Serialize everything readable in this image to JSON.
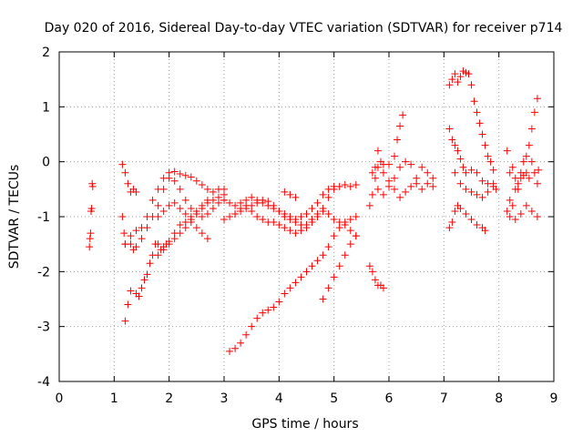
{
  "chart_data": {
    "type": "scatter",
    "title": "Day 020 of 2016, Sidereal Day-to-day VTEC variation (SDTVAR) for receiver p714",
    "xlabel": "GPS time / hours",
    "ylabel": "SDTVAR / TECUs",
    "xlim": [
      0,
      9
    ],
    "ylim": [
      -4,
      2
    ],
    "xticks": [
      "0",
      "1",
      "2",
      "3",
      "4",
      "5",
      "6",
      "7",
      "8",
      "9"
    ],
    "yticks": [
      "-4",
      "-3",
      "-2",
      "-1",
      "0",
      "1",
      "2"
    ],
    "grid": true,
    "marker": "+",
    "marker_color": "#ff0000",
    "series": [
      {
        "points": [
          [
            0.55,
            -1.55
          ],
          [
            0.56,
            -1.4
          ],
          [
            0.57,
            -1.3
          ],
          [
            0.58,
            -0.9
          ],
          [
            0.59,
            -0.85
          ],
          [
            0.6,
            -0.4
          ],
          [
            0.61,
            -0.45
          ],
          [
            1.15,
            -0.05
          ],
          [
            1.2,
            -0.2
          ],
          [
            1.25,
            -0.4
          ],
          [
            1.3,
            -0.55
          ],
          [
            1.35,
            -0.5
          ],
          [
            1.4,
            -0.55
          ],
          [
            1.15,
            -1.0
          ],
          [
            1.18,
            -1.3
          ],
          [
            1.2,
            -1.5
          ],
          [
            1.2,
            -2.9
          ],
          [
            1.25,
            -2.6
          ],
          [
            1.3,
            -2.35
          ],
          [
            1.4,
            -2.4
          ],
          [
            1.45,
            -2.45
          ],
          [
            1.5,
            -2.3
          ],
          [
            1.55,
            -2.15
          ],
          [
            1.6,
            -2.05
          ],
          [
            1.65,
            -1.85
          ],
          [
            1.7,
            -1.7
          ],
          [
            1.75,
            -1.5
          ],
          [
            1.8,
            -1.5
          ],
          [
            1.85,
            -1.6
          ],
          [
            1.9,
            -1.55
          ],
          [
            1.95,
            -1.5
          ],
          [
            2.0,
            -1.5
          ],
          [
            2.1,
            -1.4
          ],
          [
            2.2,
            -1.3
          ],
          [
            2.3,
            -1.2
          ],
          [
            2.4,
            -1.0
          ],
          [
            2.5,
            -0.9
          ],
          [
            2.6,
            -0.8
          ],
          [
            2.7,
            -0.7
          ],
          [
            1.2,
            -1.5
          ],
          [
            1.3,
            -1.35
          ],
          [
            1.4,
            -1.25
          ],
          [
            1.5,
            -1.2
          ],
          [
            1.6,
            -1.0
          ],
          [
            1.7,
            -0.7
          ],
          [
            1.8,
            -0.5
          ],
          [
            1.9,
            -0.3
          ],
          [
            2.0,
            -0.2
          ],
          [
            2.1,
            -0.18
          ],
          [
            2.2,
            -0.22
          ],
          [
            2.3,
            -0.25
          ],
          [
            2.4,
            -0.28
          ],
          [
            2.5,
            -0.35
          ],
          [
            2.6,
            -0.42
          ],
          [
            2.7,
            -0.5
          ],
          [
            2.8,
            -0.55
          ],
          [
            2.9,
            -0.5
          ],
          [
            3.0,
            -0.5
          ],
          [
            1.3,
            -1.5
          ],
          [
            1.35,
            -1.6
          ],
          [
            1.4,
            -1.55
          ],
          [
            1.5,
            -1.4
          ],
          [
            1.6,
            -1.2
          ],
          [
            1.7,
            -1.0
          ],
          [
            1.8,
            -0.8
          ],
          [
            1.9,
            -0.5
          ],
          [
            2.0,
            -0.3
          ],
          [
            2.1,
            -0.35
          ],
          [
            2.2,
            -0.5
          ],
          [
            2.3,
            -0.7
          ],
          [
            2.4,
            -0.85
          ],
          [
            2.5,
            -0.95
          ],
          [
            2.6,
            -1.0
          ],
          [
            2.7,
            -0.95
          ],
          [
            2.8,
            -0.85
          ],
          [
            2.9,
            -0.75
          ],
          [
            3.0,
            -0.7
          ],
          [
            1.8,
            -1.7
          ],
          [
            1.9,
            -1.6
          ],
          [
            2.0,
            -1.45
          ],
          [
            2.1,
            -1.3
          ],
          [
            2.2,
            -1.15
          ],
          [
            2.3,
            -1.1
          ],
          [
            2.4,
            -1.05
          ],
          [
            2.5,
            -0.95
          ],
          [
            2.6,
            -0.85
          ],
          [
            2.7,
            -0.75
          ],
          [
            2.8,
            -0.7
          ],
          [
            2.9,
            -0.65
          ],
          [
            3.0,
            -0.6
          ],
          [
            1.8,
            -1.0
          ],
          [
            1.9,
            -0.9
          ],
          [
            2.0,
            -0.8
          ],
          [
            2.1,
            -0.75
          ],
          [
            2.2,
            -0.85
          ],
          [
            2.3,
            -0.95
          ],
          [
            2.4,
            -1.1
          ],
          [
            2.5,
            -1.2
          ],
          [
            2.6,
            -1.3
          ],
          [
            2.7,
            -1.4
          ],
          [
            3.0,
            -0.7
          ],
          [
            3.1,
            -0.75
          ],
          [
            3.2,
            -0.8
          ],
          [
            3.3,
            -0.75
          ],
          [
            3.4,
            -0.7
          ],
          [
            3.5,
            -0.65
          ],
          [
            3.6,
            -0.7
          ],
          [
            3.7,
            -0.75
          ],
          [
            3.8,
            -0.8
          ],
          [
            3.9,
            -0.85
          ],
          [
            4.0,
            -0.9
          ],
          [
            4.1,
            -1.0
          ],
          [
            4.2,
            -1.05
          ],
          [
            4.3,
            -1.1
          ],
          [
            4.4,
            -1.15
          ],
          [
            4.5,
            -1.2
          ],
          [
            4.6,
            -1.1
          ],
          [
            4.7,
            -1.0
          ],
          [
            4.8,
            -0.85
          ],
          [
            4.9,
            -0.65
          ],
          [
            5.0,
            -0.5
          ],
          [
            5.1,
            -0.45
          ],
          [
            5.2,
            -0.42
          ],
          [
            5.3,
            -0.45
          ],
          [
            5.4,
            -0.42
          ],
          [
            3.2,
            -0.95
          ],
          [
            3.3,
            -0.9
          ],
          [
            3.4,
            -0.85
          ],
          [
            3.5,
            -0.8
          ],
          [
            3.6,
            -0.75
          ],
          [
            3.7,
            -0.7
          ],
          [
            3.8,
            -0.72
          ],
          [
            3.9,
            -0.8
          ],
          [
            4.0,
            -0.9
          ],
          [
            4.1,
            -0.95
          ],
          [
            4.2,
            -1.0
          ],
          [
            4.3,
            -1.05
          ],
          [
            4.4,
            -1.0
          ],
          [
            4.5,
            -0.95
          ],
          [
            4.6,
            -0.85
          ],
          [
            4.7,
            -0.75
          ],
          [
            4.8,
            -0.6
          ],
          [
            4.9,
            -0.5
          ],
          [
            5.0,
            -0.45
          ],
          [
            3.0,
            -1.05
          ],
          [
            3.1,
            -1.0
          ],
          [
            3.2,
            -0.95
          ],
          [
            3.3,
            -0.85
          ],
          [
            3.4,
            -0.8
          ],
          [
            3.5,
            -0.9
          ],
          [
            3.6,
            -1.0
          ],
          [
            3.7,
            -1.05
          ],
          [
            3.8,
            -1.1
          ],
          [
            3.9,
            -1.1
          ],
          [
            4.0,
            -1.15
          ],
          [
            4.1,
            -1.2
          ],
          [
            4.2,
            -1.25
          ],
          [
            4.3,
            -1.3
          ],
          [
            4.4,
            -1.25
          ],
          [
            4.5,
            -1.15
          ],
          [
            4.6,
            -1.05
          ],
          [
            4.7,
            -0.95
          ],
          [
            4.8,
            -0.9
          ],
          [
            4.9,
            -0.95
          ],
          [
            5.0,
            -1.05
          ],
          [
            5.1,
            -1.1
          ],
          [
            5.2,
            -1.15
          ],
          [
            5.3,
            -1.25
          ],
          [
            5.4,
            -1.35
          ],
          [
            4.1,
            -0.55
          ],
          [
            4.2,
            -0.6
          ],
          [
            4.3,
            -0.65
          ],
          [
            3.1,
            -3.45
          ],
          [
            3.2,
            -3.4
          ],
          [
            3.3,
            -3.3
          ],
          [
            3.4,
            -3.15
          ],
          [
            3.5,
            -3.0
          ],
          [
            3.6,
            -2.85
          ],
          [
            3.7,
            -2.75
          ],
          [
            3.8,
            -2.7
          ],
          [
            3.9,
            -2.65
          ],
          [
            4.0,
            -2.55
          ],
          [
            4.1,
            -2.4
          ],
          [
            4.2,
            -2.3
          ],
          [
            4.3,
            -2.2
          ],
          [
            4.4,
            -2.1
          ],
          [
            4.5,
            -2.0
          ],
          [
            4.6,
            -1.9
          ],
          [
            4.7,
            -1.8
          ],
          [
            4.8,
            -1.7
          ],
          [
            4.9,
            -1.55
          ],
          [
            5.0,
            -1.35
          ],
          [
            5.1,
            -1.2
          ],
          [
            5.2,
            -1.1
          ],
          [
            5.3,
            -1.05
          ],
          [
            5.4,
            -1.0
          ],
          [
            4.8,
            -2.5
          ],
          [
            4.9,
            -2.3
          ],
          [
            5.0,
            -2.1
          ],
          [
            5.1,
            -1.9
          ],
          [
            5.2,
            -1.7
          ],
          [
            5.3,
            -1.5
          ],
          [
            5.4,
            -1.35
          ],
          [
            5.65,
            -1.9
          ],
          [
            5.7,
            -2.0
          ],
          [
            5.75,
            -2.15
          ],
          [
            5.8,
            -2.25
          ],
          [
            5.85,
            -2.25
          ],
          [
            5.9,
            -2.3
          ],
          [
            5.65,
            -0.8
          ],
          [
            5.7,
            -0.6
          ],
          [
            5.75,
            -0.3
          ],
          [
            5.8,
            -0.1
          ],
          [
            5.85,
            0.0
          ],
          [
            5.9,
            -0.05
          ],
          [
            6.0,
            -0.05
          ],
          [
            6.1,
            0.1
          ],
          [
            6.15,
            0.4
          ],
          [
            6.2,
            0.65
          ],
          [
            6.25,
            0.85
          ],
          [
            5.7,
            -0.2
          ],
          [
            5.75,
            -0.1
          ],
          [
            5.8,
            0.2
          ],
          [
            5.9,
            -0.2
          ],
          [
            6.0,
            -0.35
          ],
          [
            6.1,
            -0.3
          ],
          [
            6.2,
            -0.1
          ],
          [
            6.3,
            0.0
          ],
          [
            6.4,
            -0.05
          ],
          [
            6.5,
            -0.3
          ],
          [
            6.6,
            -0.1
          ],
          [
            6.7,
            -0.2
          ],
          [
            6.8,
            -0.45
          ],
          [
            5.8,
            -0.5
          ],
          [
            5.9,
            -0.6
          ],
          [
            6.0,
            -0.45
          ],
          [
            6.1,
            -0.5
          ],
          [
            6.2,
            -0.65
          ],
          [
            6.3,
            -0.55
          ],
          [
            6.4,
            -0.45
          ],
          [
            6.5,
            -0.4
          ],
          [
            6.6,
            -0.5
          ],
          [
            6.7,
            -0.4
          ],
          [
            6.8,
            -0.3
          ],
          [
            7.1,
            -1.2
          ],
          [
            7.15,
            -1.1
          ],
          [
            7.2,
            -0.9
          ],
          [
            7.25,
            -0.8
          ],
          [
            7.3,
            -0.85
          ],
          [
            7.4,
            -0.95
          ],
          [
            7.5,
            -1.05
          ],
          [
            7.6,
            -1.15
          ],
          [
            7.7,
            -1.2
          ],
          [
            7.75,
            -1.25
          ],
          [
            7.1,
            1.4
          ],
          [
            7.15,
            1.5
          ],
          [
            7.2,
            1.6
          ],
          [
            7.25,
            1.45
          ],
          [
            7.3,
            1.55
          ],
          [
            7.35,
            1.65
          ],
          [
            7.4,
            1.62
          ],
          [
            7.45,
            1.6
          ],
          [
            7.5,
            1.4
          ],
          [
            7.55,
            1.1
          ],
          [
            7.6,
            0.9
          ],
          [
            7.65,
            0.7
          ],
          [
            7.7,
            0.5
          ],
          [
            7.75,
            0.3
          ],
          [
            7.8,
            0.1
          ],
          [
            7.85,
            0.0
          ],
          [
            7.9,
            -0.15
          ],
          [
            7.1,
            0.6
          ],
          [
            7.15,
            0.4
          ],
          [
            7.2,
            0.3
          ],
          [
            7.25,
            0.2
          ],
          [
            7.3,
            0.05
          ],
          [
            7.35,
            -0.1
          ],
          [
            7.4,
            -0.2
          ],
          [
            7.5,
            -0.15
          ],
          [
            7.6,
            -0.2
          ],
          [
            7.7,
            -0.35
          ],
          [
            7.8,
            -0.4
          ],
          [
            7.9,
            -0.45
          ],
          [
            7.95,
            -0.5
          ],
          [
            7.2,
            -0.2
          ],
          [
            7.3,
            -0.4
          ],
          [
            7.4,
            -0.5
          ],
          [
            7.5,
            -0.55
          ],
          [
            7.6,
            -0.6
          ],
          [
            7.7,
            -0.65
          ],
          [
            7.8,
            -0.55
          ],
          [
            7.9,
            -0.4
          ],
          [
            8.15,
            0.2
          ],
          [
            8.2,
            -0.2
          ],
          [
            8.25,
            -0.1
          ],
          [
            8.3,
            -0.3
          ],
          [
            8.35,
            -0.5
          ],
          [
            8.4,
            -0.2
          ],
          [
            8.45,
            0.0
          ],
          [
            8.5,
            0.1
          ],
          [
            8.55,
            0.3
          ],
          [
            8.6,
            0.6
          ],
          [
            8.65,
            0.9
          ],
          [
            8.7,
            1.15
          ],
          [
            8.15,
            -0.9
          ],
          [
            8.2,
            -1.0
          ],
          [
            8.25,
            -0.8
          ],
          [
            8.3,
            -0.5
          ],
          [
            8.35,
            -0.4
          ],
          [
            8.4,
            -0.3
          ],
          [
            8.45,
            -0.25
          ],
          [
            8.5,
            -0.2
          ],
          [
            8.55,
            -0.3
          ],
          [
            8.6,
            0.0
          ],
          [
            8.65,
            -0.2
          ],
          [
            8.7,
            -0.4
          ],
          [
            8.2,
            -0.7
          ],
          [
            8.3,
            -1.05
          ],
          [
            8.4,
            -0.95
          ],
          [
            8.5,
            -0.8
          ],
          [
            8.6,
            -0.9
          ],
          [
            8.7,
            -1.0
          ],
          [
            8.72,
            -0.15
          ]
        ]
      }
    ]
  }
}
